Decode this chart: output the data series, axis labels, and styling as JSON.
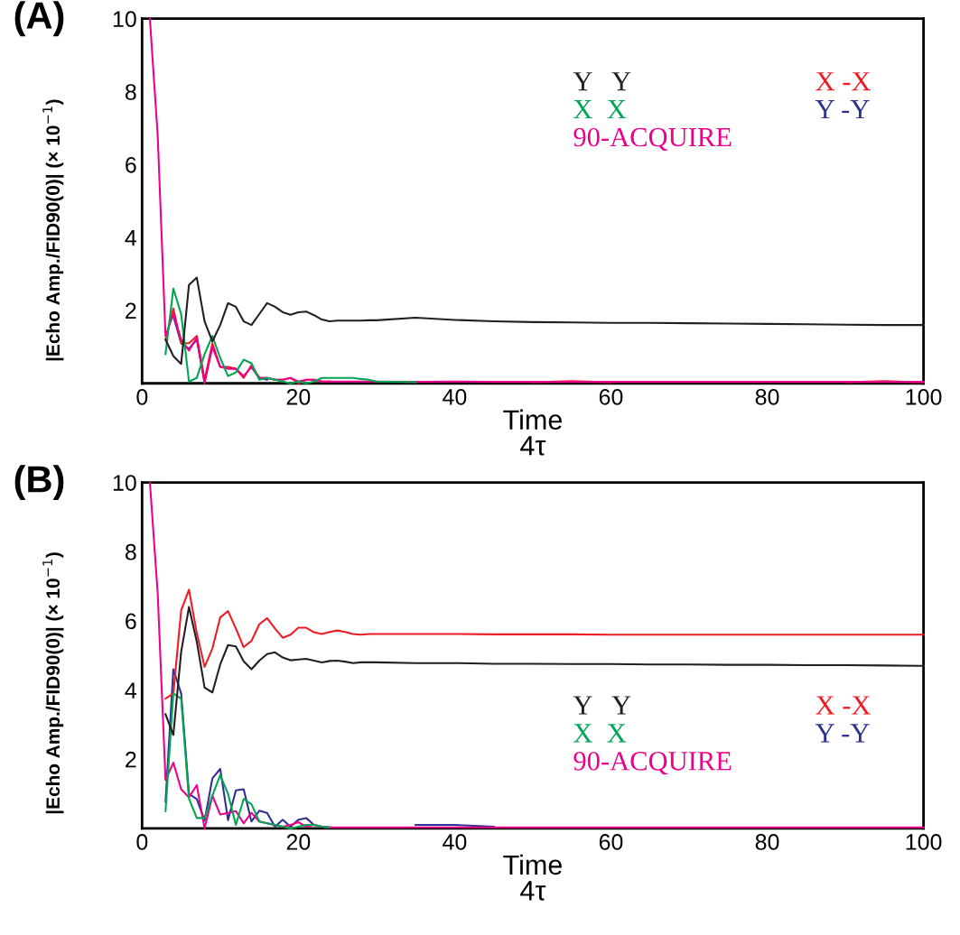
{
  "chart_data": [
    {
      "type": "line",
      "title": "(A)",
      "xlabel": "Time\n4τ",
      "ylabel": "|Echo Amp./FID90(0)| (× 10$^{−1}$)",
      "x": [
        1,
        2,
        3,
        4,
        5,
        6,
        7,
        8,
        9,
        10,
        11,
        12,
        13,
        14,
        15,
        16,
        17,
        18,
        19,
        20,
        21,
        22,
        23,
        24,
        25,
        26,
        27,
        28,
        29,
        30,
        35,
        40,
        45,
        50,
        55,
        60,
        65,
        70,
        75,
        80,
        85,
        90,
        95,
        100
      ],
      "xlim": [
        0,
        100
      ],
      "xticks": [
        0,
        20,
        40,
        60,
        80,
        100
      ],
      "ylim": [
        0,
        10
      ],
      "yticks": [
        2,
        4,
        6,
        8,
        10
      ],
      "grid": false,
      "legend": "top right",
      "marker": "none",
      "line_style": "solid",
      "series": [
        {
          "name": "Y   Y",
          "color": "#231f20",
          "values": [
            null,
            null,
            1.2,
            0.75,
            0.53,
            2.7,
            2.9,
            1.7,
            1.15,
            1.6,
            2.2,
            2.1,
            1.7,
            1.6,
            1.9,
            2.2,
            2.1,
            1.95,
            1.88,
            1.95,
            1.97,
            1.87,
            1.75,
            1.7,
            1.72,
            1.72,
            1.72,
            1.72,
            1.73,
            1.73,
            1.8,
            1.74,
            1.7,
            1.68,
            1.67,
            1.66,
            1.66,
            1.65,
            1.64,
            1.63,
            1.62,
            1.61,
            1.6,
            1.6
          ]
        },
        {
          "name": "X  X",
          "color": "#00a651",
          "values": [
            null,
            null,
            0.8,
            2.6,
            1.9,
            0.05,
            0.15,
            0.8,
            1.3,
            0.7,
            0.2,
            0.3,
            0.65,
            0.55,
            0.1,
            0.15,
            0.1,
            0.05,
            0.0,
            0.05,
            0.0,
            0.05,
            0.15,
            0.15,
            0.15,
            0.15,
            0.15,
            0.12,
            0.1,
            0.05,
            0.03,
            null,
            null,
            null,
            null,
            null,
            null,
            null,
            null,
            null,
            null,
            null,
            null,
            null
          ]
        },
        {
          "name": "90-ACQUIRE",
          "color": "#ec008c",
          "values": [
            10,
            6.8,
            1.3,
            1.9,
            1.2,
            0.9,
            1.25,
            0.0,
            1.0,
            0.45,
            0.4,
            0.4,
            0.2,
            0.45,
            0.15,
            0.15,
            0.1,
            0.1,
            0.15,
            0.05,
            0.1,
            0.1,
            0.05,
            0.05,
            0.05,
            0.05,
            0.05,
            0.05,
            0.05,
            0.05,
            0.04,
            0.05,
            0.04,
            0.04,
            0.04,
            0.04,
            0.04,
            0.04,
            0.04,
            0.04,
            0.04,
            0.04,
            0.04,
            0.04
          ]
        },
        {
          "name": "X -X",
          "color": "#ed1c24",
          "values": [
            null,
            null,
            1.2,
            2.05,
            1.1,
            1.1,
            1.3,
            0.1,
            1.1,
            0.45,
            0.45,
            0.4,
            0.15,
            0.5,
            0.15,
            0.15,
            0.1,
            0.1,
            0.15,
            0.0,
            0.1,
            0.1,
            0.05,
            0.05,
            null,
            null,
            null,
            null,
            null,
            null,
            null,
            null,
            null,
            0.03,
            0.06,
            0.03,
            null,
            null,
            null,
            null,
            null,
            0.03,
            0.06,
            0.03
          ]
        },
        {
          "name": "Y -Y",
          "color": "#2e3192",
          "values": [
            null,
            null,
            null,
            1.85,
            1.1,
            0.95,
            1.2,
            0.05,
            null,
            null,
            null,
            null,
            null,
            0.45,
            0.15,
            0.1,
            null,
            null,
            null,
            null,
            null,
            null,
            null,
            null,
            null,
            null,
            null,
            null,
            null,
            null,
            null,
            null,
            null,
            null,
            null,
            null,
            null,
            null,
            null,
            null,
            null,
            null,
            null,
            null
          ]
        }
      ]
    },
    {
      "type": "line",
      "title": "(B)",
      "xlabel": "Time\n4τ",
      "ylabel": "|Echo Amp./FID90(0)| (× 10$^{−1}$)",
      "x": [
        1,
        2,
        3,
        4,
        5,
        6,
        7,
        8,
        9,
        10,
        11,
        12,
        13,
        14,
        15,
        16,
        17,
        18,
        19,
        20,
        21,
        22,
        23,
        24,
        25,
        26,
        27,
        28,
        29,
        30,
        35,
        40,
        45,
        50,
        55,
        60,
        65,
        70,
        75,
        80,
        85,
        90,
        95,
        100
      ],
      "xlim": [
        0,
        100
      ],
      "xticks": [
        0,
        20,
        40,
        60,
        80,
        100
      ],
      "ylim": [
        0,
        10
      ],
      "yticks": [
        2,
        4,
        6,
        8,
        10
      ],
      "grid": false,
      "legend": "bottom right",
      "marker": "none",
      "line_style": "solid",
      "series": [
        {
          "name": "Y   Y",
          "color": "#231f20",
          "values": [
            null,
            null,
            3.3,
            2.7,
            5.1,
            6.4,
            5.4,
            4.07,
            3.93,
            4.74,
            5.3,
            5.26,
            4.83,
            4.6,
            4.85,
            5.04,
            5.09,
            4.94,
            4.86,
            4.88,
            4.9,
            4.85,
            4.8,
            4.84,
            4.85,
            4.82,
            4.78,
            4.8,
            4.8,
            4.8,
            4.78,
            4.78,
            4.76,
            4.76,
            4.75,
            4.75,
            4.74,
            4.74,
            4.73,
            4.73,
            4.72,
            4.72,
            4.71,
            4.7
          ]
        },
        {
          "name": "X  X",
          "color": "#00a651",
          "values": [
            null,
            null,
            0.5,
            3.9,
            3.75,
            0.86,
            0.3,
            0.3,
            0.95,
            1.54,
            1.0,
            0.1,
            0.85,
            0.7,
            0.2,
            0.15,
            0.1,
            0.05,
            0.0,
            0.05,
            0.1,
            0.1,
            0.05,
            0.03,
            null,
            null,
            null,
            null,
            null,
            null,
            null,
            null,
            null,
            null,
            null,
            null,
            null,
            null,
            null,
            null,
            null,
            null,
            null,
            null
          ]
        },
        {
          "name": "90-ACQUIRE",
          "color": "#ec008c",
          "values": [
            10,
            6.8,
            1.4,
            1.9,
            1.13,
            0.9,
            1.25,
            0.0,
            0.95,
            0.4,
            0.45,
            0.5,
            0.15,
            0.45,
            0.2,
            0.15,
            0.1,
            0.05,
            0.1,
            0.18,
            0.05,
            0.1,
            0.05,
            0.03,
            0.03,
            0.03,
            0.03,
            0.03,
            0.03,
            0.03,
            0.03,
            0.03,
            0.03,
            0.03,
            0.03,
            0.03,
            0.03,
            0.03,
            0.03,
            0.03,
            0.03,
            0.03,
            0.03,
            0.03
          ]
        },
        {
          "name": "X -X",
          "color": "#ed1c24",
          "values": [
            null,
            null,
            3.75,
            3.9,
            6.3,
            6.9,
            5.65,
            4.67,
            5.2,
            6.1,
            6.28,
            5.78,
            5.24,
            5.42,
            5.9,
            6.08,
            5.78,
            5.51,
            5.6,
            5.8,
            5.8,
            5.67,
            5.62,
            5.68,
            5.72,
            5.68,
            5.62,
            5.6,
            5.62,
            5.62,
            5.62,
            5.62,
            5.61,
            5.61,
            5.61,
            5.6,
            5.6,
            5.6,
            5.6,
            5.6,
            5.6,
            5.6,
            5.6,
            5.6
          ]
        },
        {
          "name": "Y -Y",
          "color": "#2e3192",
          "values": [
            null,
            null,
            0.77,
            4.6,
            3.9,
            1.0,
            0.85,
            0.23,
            1.45,
            1.72,
            0.24,
            1.1,
            1.13,
            0.2,
            0.51,
            0.45,
            0.05,
            0.25,
            0.05,
            0.25,
            0.3,
            0.1,
            0.05,
            0.03,
            null,
            null,
            null,
            null,
            null,
            null,
            0.1,
            0.1,
            0.05,
            null,
            null,
            null,
            null,
            null,
            null,
            null,
            null,
            null,
            null,
            null
          ]
        }
      ]
    }
  ]
}
